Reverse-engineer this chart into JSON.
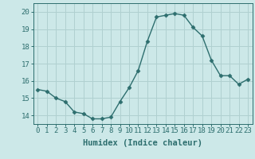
{
  "x": [
    0,
    1,
    2,
    3,
    4,
    5,
    6,
    7,
    8,
    9,
    10,
    11,
    12,
    13,
    14,
    15,
    16,
    17,
    18,
    19,
    20,
    21,
    22,
    23
  ],
  "y": [
    15.5,
    15.4,
    15.0,
    14.8,
    14.2,
    14.1,
    13.8,
    13.8,
    13.9,
    14.8,
    15.6,
    16.6,
    18.3,
    19.7,
    19.8,
    19.9,
    19.8,
    19.1,
    18.6,
    17.2,
    16.3,
    16.3,
    15.8,
    16.1
  ],
  "line_color": "#2d6e6e",
  "marker": "D",
  "marker_size": 2.5,
  "line_width": 1.0,
  "bg_color": "#cce8e8",
  "grid_color": "#b0d0d0",
  "xlabel": "Humidex (Indice chaleur)",
  "xlabel_fontsize": 7.5,
  "ylabel_ticks": [
    14,
    15,
    16,
    17,
    18,
    19,
    20
  ],
  "ylim": [
    13.5,
    20.5
  ],
  "xlim": [
    -0.5,
    23.5
  ],
  "tick_fontsize": 6.5
}
